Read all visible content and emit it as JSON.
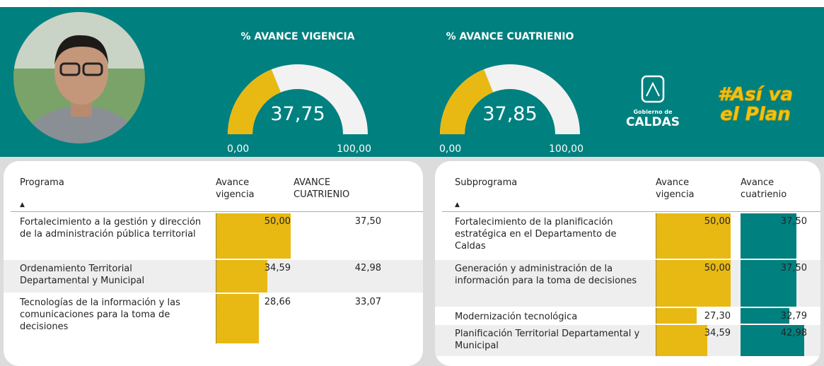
{
  "header": {
    "gauges": [
      {
        "title": "% AVANCE VIGENCIA",
        "value": {
          "value": 37.75,
          "label": "37,75"
        },
        "min": {
          "value": 0,
          "label": "0,00"
        },
        "max": {
          "value": 100,
          "label": "100,00"
        },
        "color": "#e8b913"
      },
      {
        "title": "% AVANCE CUATRIENIO",
        "value": {
          "value": 37.85,
          "label": "37,85"
        },
        "min": {
          "value": 0,
          "label": "0,00"
        },
        "max": {
          "value": 100,
          "label": "100,00"
        },
        "color": "#e8b913"
      }
    ],
    "logo_caldas": {
      "small": "Gobierno de",
      "big": "CALDAS"
    },
    "logo_plan": {
      "line1": "#Así va",
      "line2": "el Plan"
    }
  },
  "tables": [
    {
      "columns": [
        "Programa",
        "Avance vigencia",
        "AVANCE CUATRIENIO"
      ],
      "vigencia_color": "#e8b913",
      "rows": [
        {
          "name": "Fortalecimiento a la gestión y dirección de la administración pública territorial",
          "vigencia": {
            "value": 50,
            "label": "50,00"
          },
          "cuatrienio": {
            "value": 37.5,
            "label": "37,50"
          }
        },
        {
          "name": "Ordenamiento Territorial Departamental y Municipal",
          "vigencia": {
            "value": 34.59,
            "label": "34,59"
          },
          "cuatrienio": {
            "value": 42.98,
            "label": "42,98"
          }
        },
        {
          "name": "Tecnologías de la información y las comunicaciones para la toma de decisiones",
          "vigencia": {
            "value": 28.66,
            "label": "28,66"
          },
          "cuatrienio": {
            "value": 33.07,
            "label": "33,07"
          }
        }
      ]
    },
    {
      "columns": [
        "Subprograma",
        "Avance vigencia",
        "Avance cuatrienio"
      ],
      "vigencia_color": "#e8b913",
      "cuatrienio_color": "#00807f",
      "rows": [
        {
          "name": "Fortalecimiento de la planificación estratégica en el Departamento de Caldas",
          "vigencia": {
            "value": 50,
            "label": "50,00"
          },
          "cuatrienio": {
            "value": 37.5,
            "label": "37,50"
          }
        },
        {
          "name": "Generación y administración de la información para la toma de decisiones",
          "vigencia": {
            "value": 50,
            "label": "50,00"
          },
          "cuatrienio": {
            "value": 37.5,
            "label": "37,50"
          }
        },
        {
          "name": "Modernización tecnológica",
          "vigencia": {
            "value": 27.3,
            "label": "27,30"
          },
          "cuatrienio": {
            "value": 32.79,
            "label": "32,79"
          }
        },
        {
          "name": "Planificación Territorial Departamental y Municipal",
          "vigencia": {
            "value": 34.59,
            "label": "34,59"
          },
          "cuatrienio": {
            "value": 42.98,
            "label": "42,98"
          }
        }
      ]
    }
  ]
}
